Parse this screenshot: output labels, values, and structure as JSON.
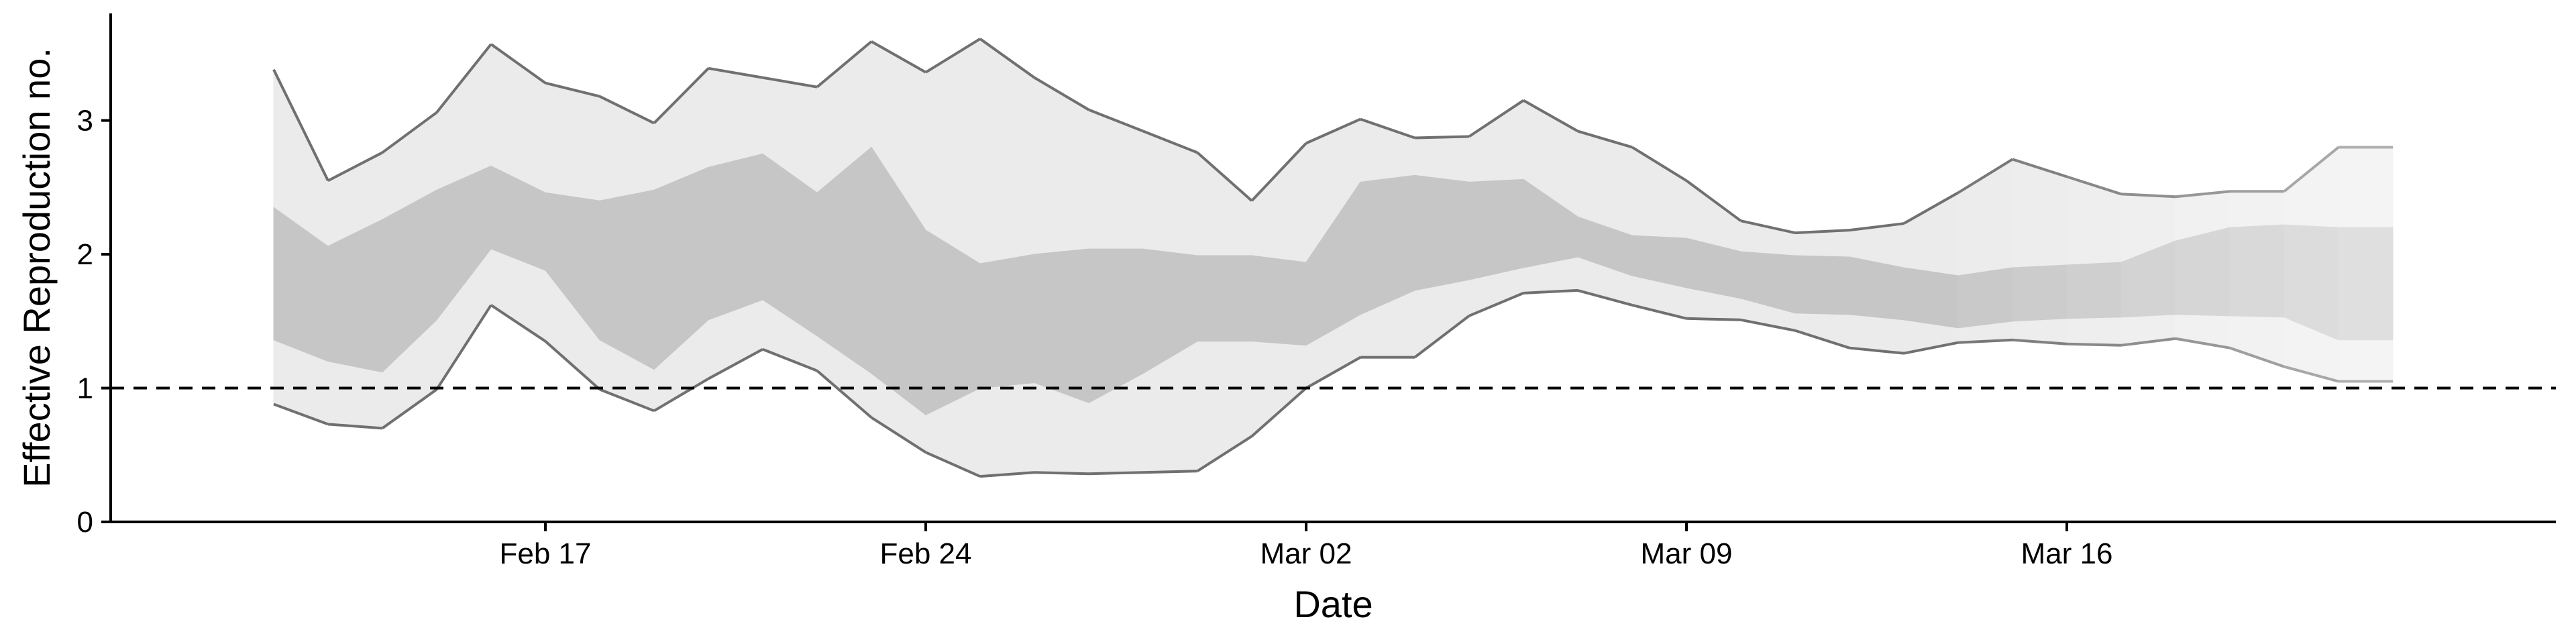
{
  "chart_data": {
    "type": "area",
    "title": "",
    "xlabel": "Date",
    "ylabel": "Effective Reproduction no.",
    "x_tick_labels": [
      "Feb 17",
      "Feb 24",
      "Mar 02",
      "Mar 09",
      "Mar 16"
    ],
    "y_tick_labels": [
      "0",
      "1",
      "2",
      "3"
    ],
    "ylim": [
      0,
      3.8
    ],
    "xlim": [
      "2020-02-09",
      "2020-03-25"
    ],
    "grid": false,
    "legend": "none",
    "reference_line": {
      "y": 1,
      "style": "dashed"
    },
    "colors": {
      "outer_band": "#ebebeb",
      "inner_band": "#c6c6c6",
      "bound_line": "#707070",
      "axis": "#000000"
    },
    "x": [
      "2020-02-12",
      "2020-02-13",
      "2020-02-14",
      "2020-02-15",
      "2020-02-16",
      "2020-02-17",
      "2020-02-18",
      "2020-02-19",
      "2020-02-20",
      "2020-02-21",
      "2020-02-22",
      "2020-02-23",
      "2020-02-24",
      "2020-02-25",
      "2020-02-26",
      "2020-02-27",
      "2020-02-28",
      "2020-02-29",
      "2020-03-01",
      "2020-03-02",
      "2020-03-03",
      "2020-03-04",
      "2020-03-05",
      "2020-03-06",
      "2020-03-07",
      "2020-03-08",
      "2020-03-09",
      "2020-03-10",
      "2020-03-11",
      "2020-03-12",
      "2020-03-13",
      "2020-03-14",
      "2020-03-15",
      "2020-03-16",
      "2020-03-17",
      "2020-03-18",
      "2020-03-19",
      "2020-03-20",
      "2020-03-21",
      "2020-03-22"
    ],
    "series": [
      {
        "values": [
          3.38,
          2.55,
          2.76,
          3.06,
          3.57,
          3.28,
          3.18,
          2.98,
          3.39,
          3.32,
          3.25,
          3.59,
          3.36,
          3.61,
          3.32,
          3.08,
          2.92,
          2.76,
          2.4,
          2.83,
          3.01,
          2.87,
          2.88,
          3.15,
          2.92,
          2.8,
          2.55,
          2.25,
          2.16,
          2.18,
          2.23,
          2.46,
          2.71,
          2.58,
          2.45,
          2.43,
          2.47,
          2.47,
          2.8,
          2.8
        ]
      },
      {
        "values": [
          2.35,
          2.06,
          2.26,
          2.48,
          2.66,
          2.46,
          2.4,
          2.48,
          2.65,
          2.75,
          2.46,
          2.8,
          2.18,
          1.93,
          2.0,
          2.04,
          2.04,
          1.99,
          1.99,
          1.94,
          2.54,
          2.59,
          2.54,
          2.56,
          2.28,
          2.14,
          2.12,
          2.02,
          1.99,
          1.98,
          1.9,
          1.84,
          1.9,
          1.92,
          1.94,
          2.1,
          2.2,
          2.22,
          2.2,
          2.2
        ]
      },
      {
        "values": [
          1.36,
          1.2,
          1.12,
          1.51,
          2.04,
          1.88,
          1.36,
          1.14,
          1.51,
          1.66,
          1.39,
          1.11,
          0.8,
          1.0,
          1.04,
          0.89,
          1.11,
          1.35,
          1.35,
          1.32,
          1.55,
          1.73,
          1.81,
          1.9,
          1.98,
          1.84,
          1.75,
          1.67,
          1.56,
          1.55,
          1.51,
          1.45,
          1.5,
          1.52,
          1.53,
          1.55,
          1.54,
          1.53,
          1.36,
          1.36
        ]
      },
      {
        "values": [
          0.88,
          0.73,
          0.7,
          0.99,
          1.62,
          1.35,
          0.99,
          0.83,
          1.07,
          1.29,
          1.13,
          0.78,
          0.52,
          0.34,
          0.37,
          0.36,
          0.37,
          0.38,
          0.64,
          1.0,
          1.23,
          1.23,
          1.54,
          1.71,
          1.73,
          1.62,
          1.52,
          1.51,
          1.43,
          1.3,
          1.26,
          1.34,
          1.36,
          1.33,
          1.32,
          1.37,
          1.3,
          1.16,
          1.05,
          1.05
        ]
      }
    ]
  }
}
